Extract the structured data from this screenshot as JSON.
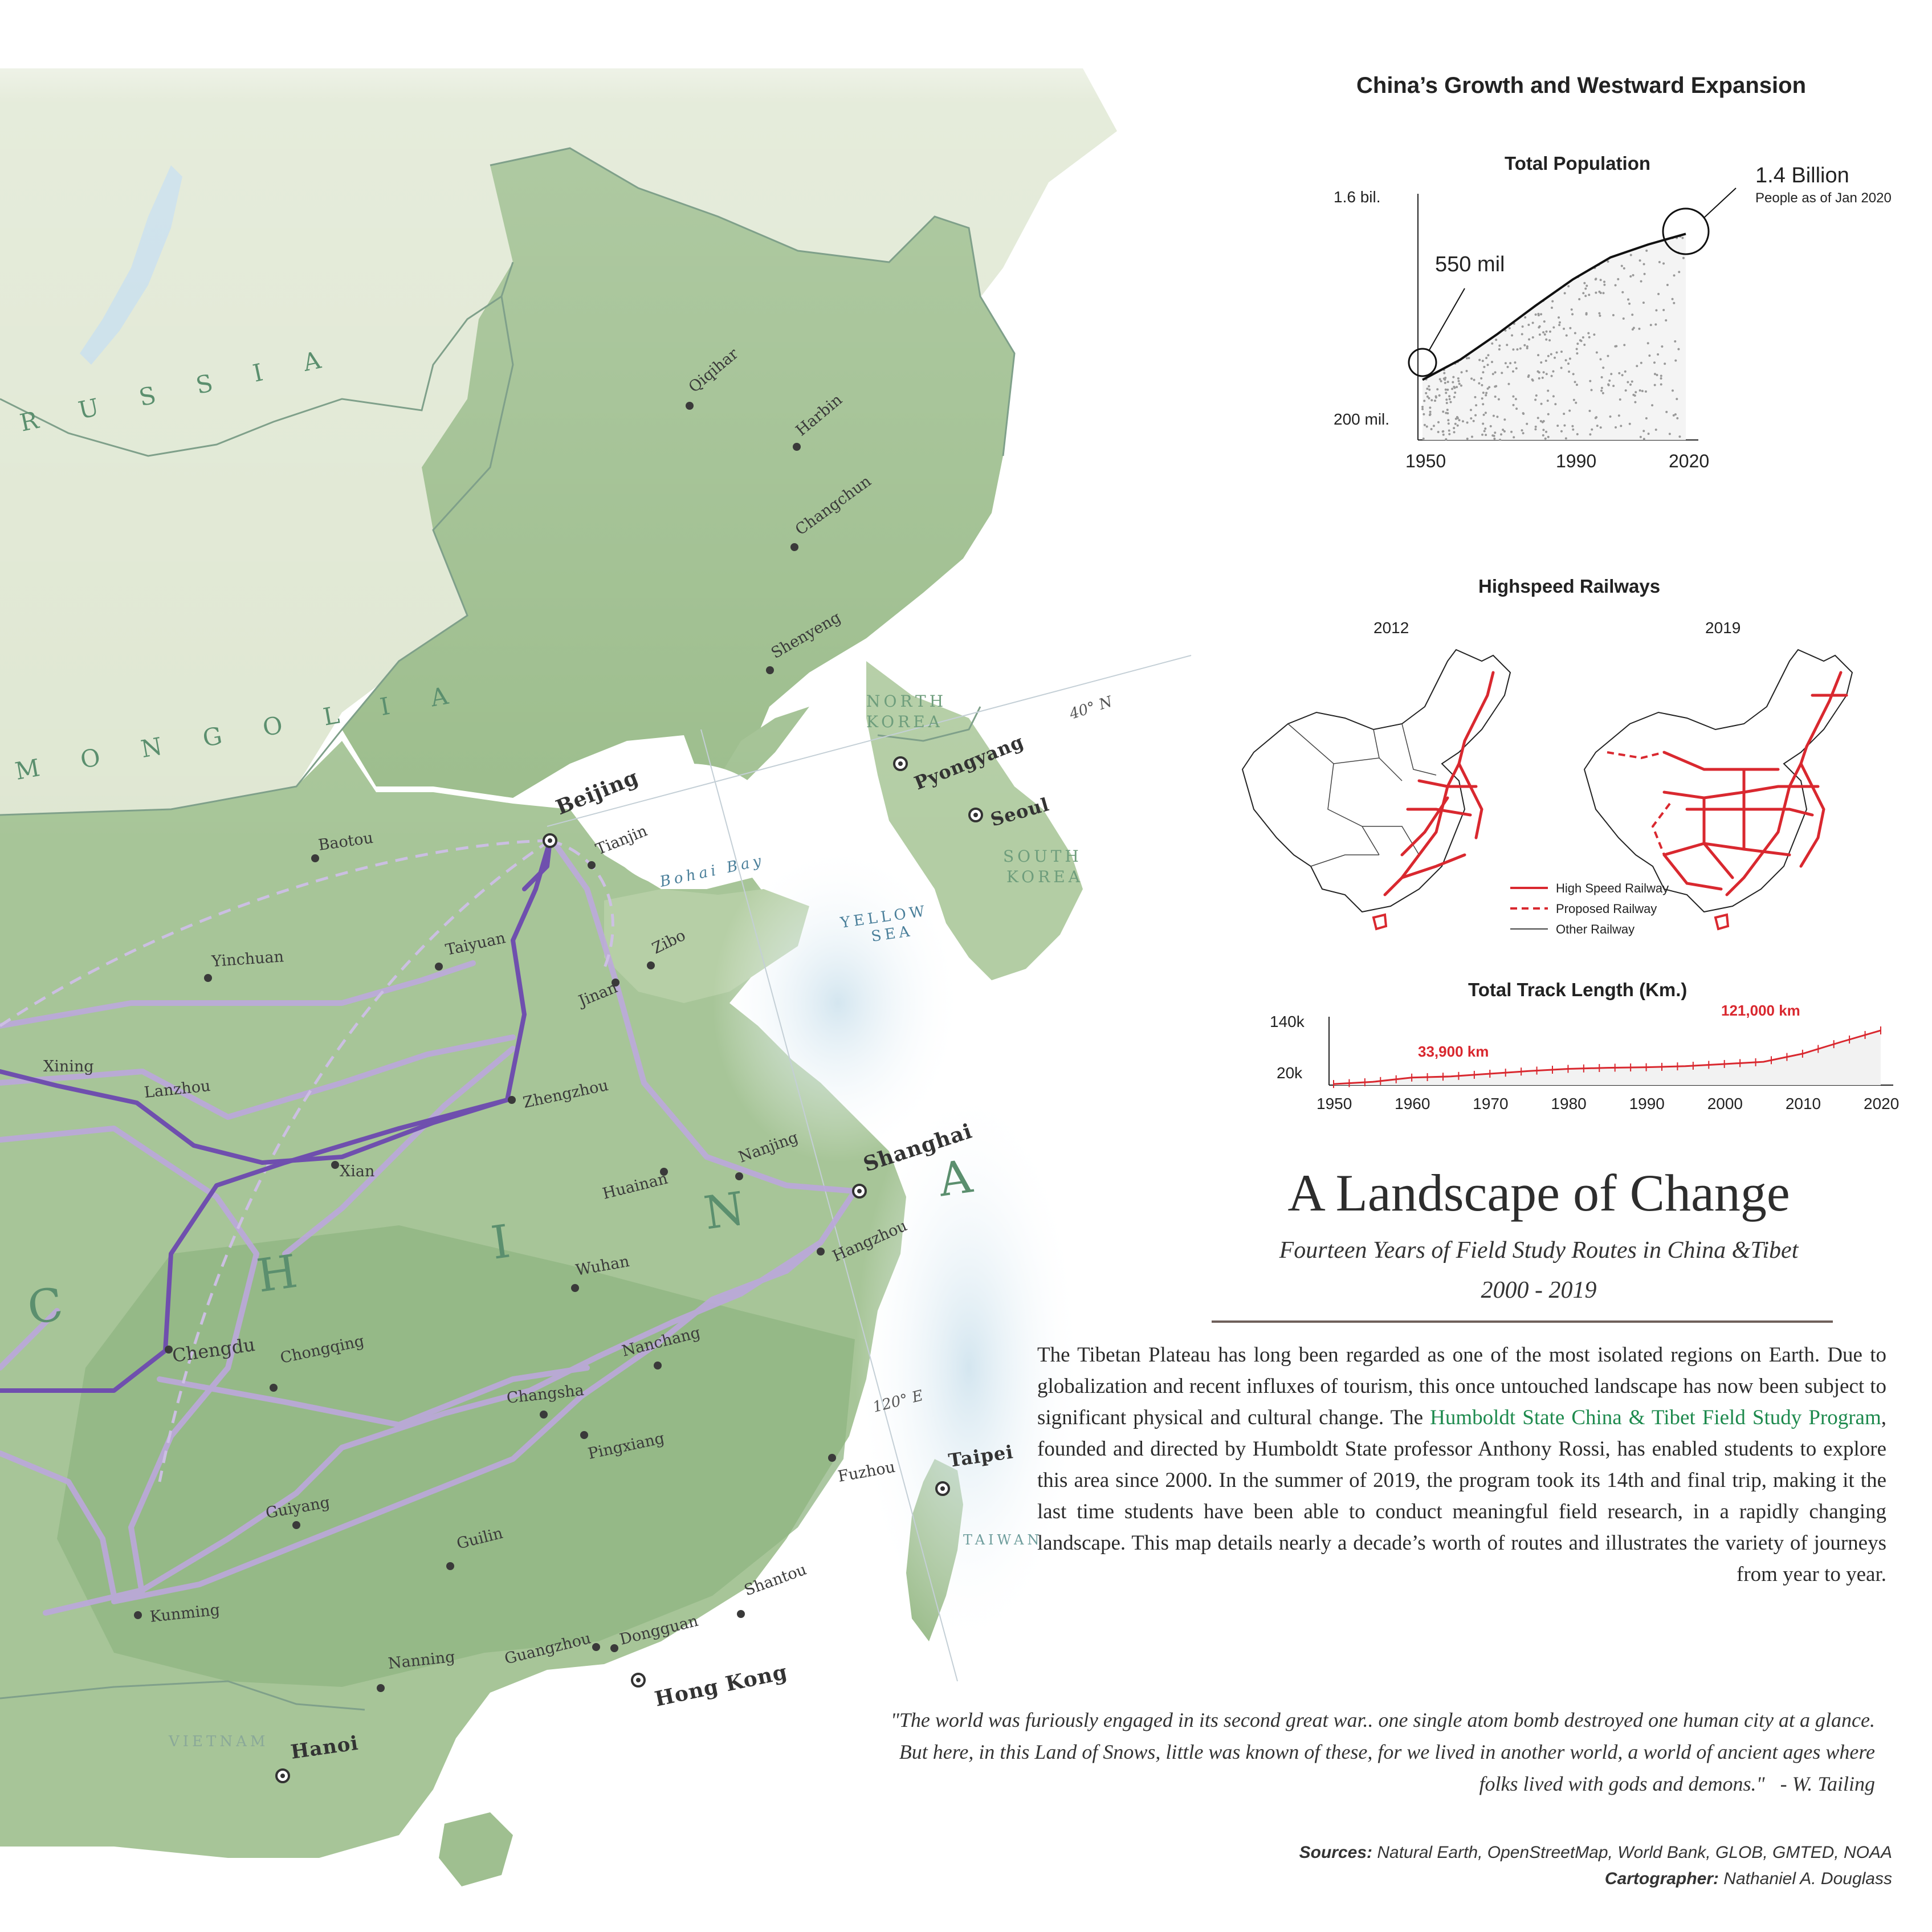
{
  "map": {
    "countries": {
      "russia": "R U S S I A",
      "mongolia": "M O N G O L I A",
      "china": "C H I N A",
      "north_korea": [
        "NORTH",
        "KOREA"
      ],
      "south_korea": [
        "SOUTH",
        "KOREA"
      ],
      "vietnam": "VIETNAM",
      "taiwan": "TAIWAN"
    },
    "water": {
      "bohai": "Bohai Bay",
      "yellow_sea": [
        "YELLOW",
        "SEA"
      ]
    },
    "graticules": {
      "lat40": "40° N",
      "lon120": "120° E"
    },
    "capitals": {
      "beijing": "Beijing",
      "pyongyang": "Pyongyang",
      "seoul": "Seoul",
      "shanghai": "Shanghai",
      "taipei": "Taipei",
      "hongkong": "Hong Kong",
      "hanoi": "Hanoi"
    },
    "cities": {
      "qiqihar": "Qiqihar",
      "harbin": "Harbin",
      "changchun": "Changchun",
      "shenyeng": "Shenyeng",
      "baotou": "Baotou",
      "tianjin": "Tianjin",
      "taiyuan": "Taiyuan",
      "yinchuan": "Yinchuan",
      "zibo": "Zibo",
      "jinan": "Jinan",
      "xining": "Xining",
      "lanzhou": "Lanzhou",
      "zhengzhou": "Zhengzhou",
      "xian": "Xian",
      "nanjing": "Nanjing",
      "huainan": "Huainan",
      "hangzhou": "Hangzhou",
      "wuhan": "Wuhan",
      "chengdu": "Chengdu",
      "chongqing": "Chongqing",
      "nanchang": "Nanchang",
      "changsha": "Changsha",
      "pingxiang": "Pingxiang",
      "fuzhou": "Fuzhou",
      "guiyang": "Guiyang",
      "guilin": "Guilin",
      "shantou": "Shantou",
      "kunming": "Kunming",
      "nanning": "Nanning",
      "guangzhou": "Guangzhou",
      "dongguan": "Dongguan"
    }
  },
  "infographic": {
    "title": "China’s Growth and Westward Expansion",
    "population": {
      "title": "Total Population",
      "y_top": "1.6 bil.",
      "y_bottom": "200 mil.",
      "x_ticks": [
        "1950",
        "1990",
        "2020"
      ],
      "annotation_start": "550 mil",
      "annotation_end": "1.4 Billion",
      "annotation_end_sub": "People as of Jan 2020"
    },
    "railways": {
      "title": "Highspeed Railways",
      "year_left": "2012",
      "year_right": "2019",
      "legend": [
        "High Speed Railway",
        "Proposed Railway",
        "Other Railway"
      ]
    },
    "track": {
      "title": "Total Track Length (Km.)",
      "y_top": "140k",
      "y_bottom": "20k",
      "x_ticks": [
        "1950",
        "1960",
        "1970",
        "1980",
        "1990",
        "2000",
        "2010",
        "2020"
      ],
      "label_1": "33,900 km",
      "label_2": "121,000 km"
    }
  },
  "chart_data": [
    {
      "type": "area",
      "title": "Total Population",
      "x": [
        1950,
        1960,
        1970,
        1980,
        1990,
        2000,
        2010,
        2020
      ],
      "series": [
        {
          "values": [
            550000000,
            667000000,
            818000000,
            981000000,
            1135000000,
            1263000000,
            1338000000,
            1400000000
          ]
        }
      ],
      "ylim": [
        200000000,
        1600000000
      ],
      "y_tick_labels": [
        "200 mil.",
        "1.6 bil."
      ],
      "x_tick_labels": [
        "1950",
        "1990",
        "2020"
      ]
    },
    {
      "type": "line",
      "title": "Total Track Length (Km.)",
      "x": [
        1950,
        1955,
        1960,
        1965,
        1970,
        1975,
        1980,
        1985,
        1990,
        1995,
        2000,
        2005,
        2010,
        2015,
        2020
      ],
      "series": [
        {
          "values": [
            22000,
            26000,
            33900,
            36000,
            41000,
            46000,
            50000,
            52000,
            53000,
            55000,
            59000,
            63000,
            78000,
            100000,
            121000
          ]
        }
      ],
      "ylim": [
        20000,
        140000
      ],
      "y_tick_labels": [
        "20k",
        "140k"
      ],
      "x_tick_labels": [
        "1950",
        "1960",
        "1970",
        "1980",
        "1990",
        "2000",
        "2010",
        "2020"
      ]
    }
  ],
  "text": {
    "title": "A Landscape of Change",
    "subtitle": "Fourteen Years of Field Study Routes in China &Tibet",
    "years": "2000 - 2019",
    "body_1": "The Tibetan Plateau has long been regarded as one of the most isolated regions on Earth. Due to globalization and recent influxes of tourism, this once untouched landscape has now been subject to significant physical and cultural change. The ",
    "body_link": "Humboldt State China & Tibet Field Study Program",
    "body_2": ", founded and directed by Humboldt State professor Anthony Rossi, has enabled students to explore this area since 2000. In the summer of 2019, the program took its 14th and final trip, making it the last time students have been able to conduct meaningful field research, in a rapidly changing landscape. This map details nearly a decade’s worth of routes and illustrates the variety of journeys from year to year.",
    "quote": "\"The world was furiously engaged in its second great war.. one single atom bomb destroyed one human city at a glance. But here, in this Land of Snows, little was known of these, for we lived in another world, a world of ancient ages where folks lived with gods and demons.\"",
    "quote_author": "- W. Tailing",
    "sources_label": "Sources:",
    "sources": " Natural Earth, OpenStreetMap, World Bank, GLOB, GMTED, NOAA",
    "cartographer_label": "Cartographer:",
    "cartographer": " Nathaniel A. Douglass"
  },
  "colors": {
    "land_green": "#9fbf90",
    "deep_green": "#7fa873",
    "pale_land": "#e6ead6",
    "water": "#ffffff",
    "route_dark": "#6a4aa3",
    "route_light": "#b9a6d8",
    "rail_red": "#d9282f",
    "link_green": "#1e8a4e"
  }
}
